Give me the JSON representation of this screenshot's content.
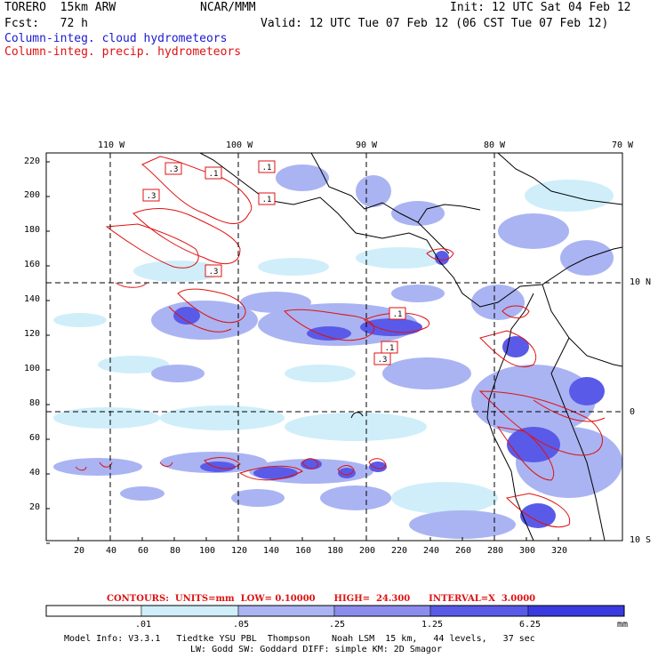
{
  "header": {
    "model": "TORERO  15km ARW",
    "org": "NCAR/MMM",
    "init": "Init: 12 UTC Sat 04 Feb 12",
    "fcst": "Fcst:   72 h",
    "valid": "Valid: 12 UTC Tue 07 Feb 12 (06 CST Tue 07 Feb 12)"
  },
  "legend": {
    "cloud": "Column-integ. cloud hydrometeors",
    "precip": "Column-integ. precip. hydrometeors",
    "cloud_color": "#1a1ad0",
    "precip_color": "#e01010"
  },
  "map": {
    "lon_labels": [
      "110 W",
      "100 W",
      "90 W",
      "80 W",
      "70 W"
    ],
    "lat_labels": [
      "10 N",
      "0",
      "10 S"
    ],
    "y_ticks": [
      "220",
      "200",
      "180",
      "160",
      "140",
      "120",
      "100",
      "80",
      "60",
      "40",
      "20"
    ],
    "x_ticks": [
      "20",
      "40",
      "60",
      "80",
      "100",
      "120",
      "140",
      "160",
      "180",
      "200",
      "220",
      "240",
      "260",
      "280",
      "300",
      "320"
    ],
    "contour_labels": [
      ".3",
      ".1",
      ".1",
      ".3",
      ".1",
      ".1",
      ".3",
      ".1",
      ".3"
    ]
  },
  "contours_info": {
    "label": "CONTOURS:  UNITS=mm  LOW= 0.10000      HIGH=  24.300      INTERVAL=X  3.0000"
  },
  "colorbar": {
    "labels": [
      ".01",
      ".05",
      ".25",
      "1.25",
      "6.25"
    ],
    "unit": "mm",
    "colors": [
      "#ffffff",
      "#cfeefa",
      "#aab4f2",
      "#8c8cee",
      "#5a5ae8",
      "#3a3ae0",
      "#1010dc"
    ]
  },
  "footer": {
    "line1": "Model Info: V3.3.1   Tiedtke YSU PBL  Thompson    Noah LSM  15 km,   44 levels,   37 sec",
    "line2": "LW: Godd SW: Goddard DIFF: simple KM: 2D Smagor"
  }
}
